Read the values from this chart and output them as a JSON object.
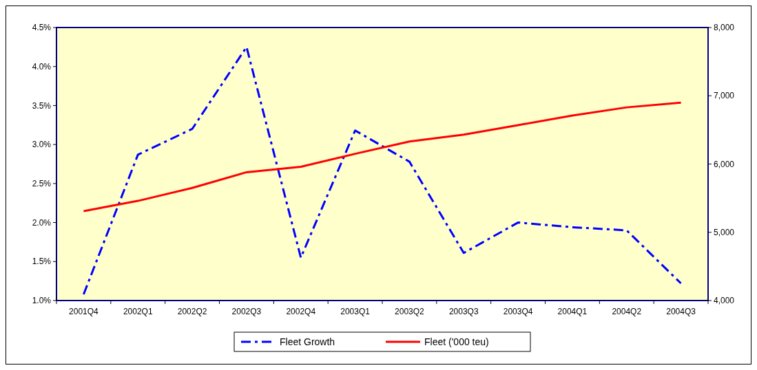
{
  "chart_data": {
    "type": "line",
    "categories": [
      "2001Q4",
      "2002Q1",
      "2002Q2",
      "2002Q3",
      "2002Q4",
      "2003Q1",
      "2003Q2",
      "2003Q3",
      "2003Q4",
      "2004Q1",
      "2004Q2",
      "2004Q3"
    ],
    "series": [
      {
        "name": "Fleet Growth",
        "color": "#0000ff",
        "line_style": "dashed",
        "values": [
          1.08,
          2.87,
          3.2,
          4.25,
          1.55,
          3.18,
          2.78,
          1.61,
          2.0,
          1.94,
          1.9,
          1.22
        ]
      },
      {
        "name": "Fleet ('000 teu)",
        "color": "#ff0000",
        "line_style": "solid",
        "axis": "y2",
        "values": [
          5310,
          5460,
          5650,
          5880,
          5960,
          6150,
          6330,
          6430,
          6570,
          6710,
          6830,
          6900
        ]
      }
    ],
    "ylim": [
      1.0,
      4.5
    ],
    "yticks": [
      {
        "value": 1.0,
        "label": "1.0%"
      },
      {
        "value": 1.5,
        "label": "1.5%"
      },
      {
        "value": 2.0,
        "label": "2.0%"
      },
      {
        "value": 2.5,
        "label": "2.5%"
      },
      {
        "value": 3.0,
        "label": "3.0%"
      },
      {
        "value": 3.5,
        "label": "3.5%"
      },
      {
        "value": 4.0,
        "label": "4.0%"
      },
      {
        "value": 4.5,
        "label": "4.5%"
      }
    ],
    "y2lim": [
      4000,
      8000
    ],
    "y2ticks": [
      {
        "value": 4000,
        "label": "4,000"
      },
      {
        "value": 5000,
        "label": "5,000"
      },
      {
        "value": 6000,
        "label": "6,000"
      },
      {
        "value": 7000,
        "label": "7,000"
      },
      {
        "value": 8000,
        "label": "8,000"
      }
    ],
    "legend": "bottom",
    "grid": false
  }
}
